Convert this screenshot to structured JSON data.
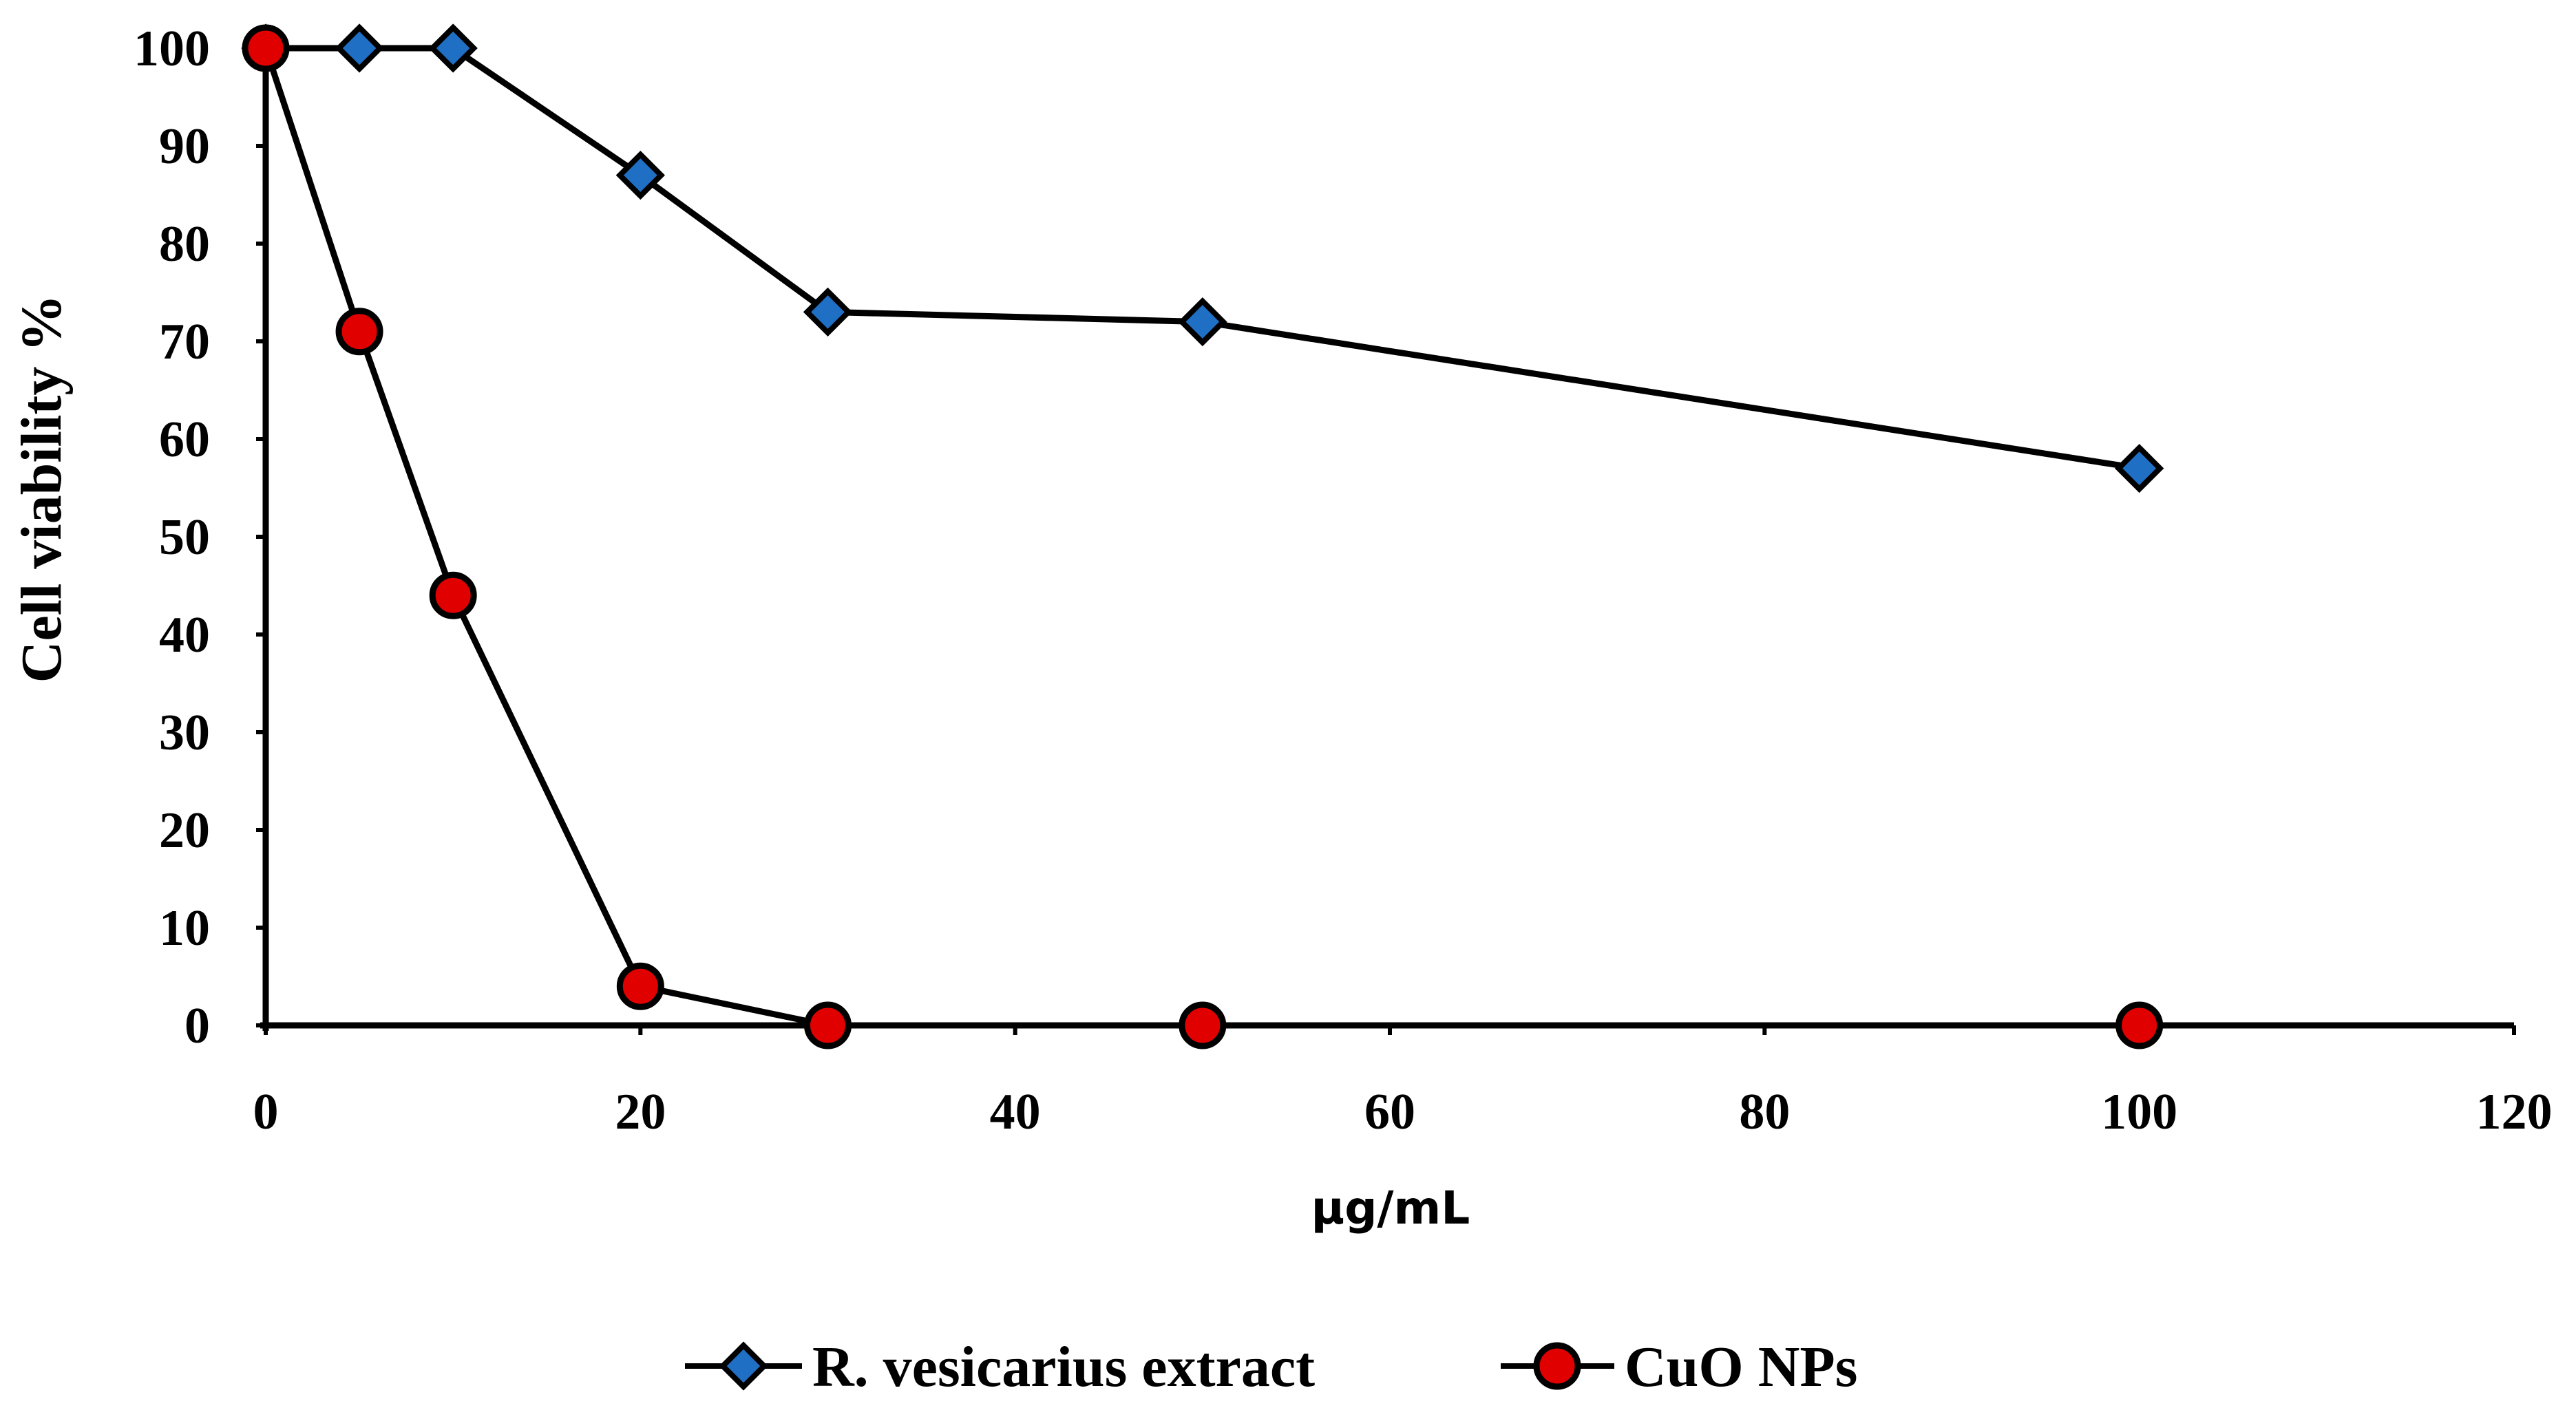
{
  "chart_data": {
    "type": "line",
    "title": "",
    "xlabel": "μg/mL",
    "ylabel": "Cell viability %",
    "xlim": [
      0,
      120
    ],
    "ylim": [
      0,
      100
    ],
    "xticks": [
      0,
      20,
      40,
      60,
      80,
      100,
      120
    ],
    "yticks": [
      0,
      10,
      20,
      30,
      40,
      50,
      60,
      70,
      80,
      90,
      100
    ],
    "grid": false,
    "legend_position": "bottom-center",
    "series": [
      {
        "name": "R. vesicarius extract",
        "marker": "diamond",
        "color": "#1f6fc5",
        "x": [
          0,
          5,
          10,
          20,
          30,
          50,
          100
        ],
        "y": [
          100,
          100,
          100,
          87,
          73,
          72,
          57
        ]
      },
      {
        "name": "CuO NPs",
        "marker": "circle",
        "color": "#e00000",
        "x": [
          0,
          5,
          10,
          20,
          30,
          50,
          100
        ],
        "y": [
          100,
          71,
          44,
          4,
          0,
          0,
          0
        ]
      }
    ]
  }
}
